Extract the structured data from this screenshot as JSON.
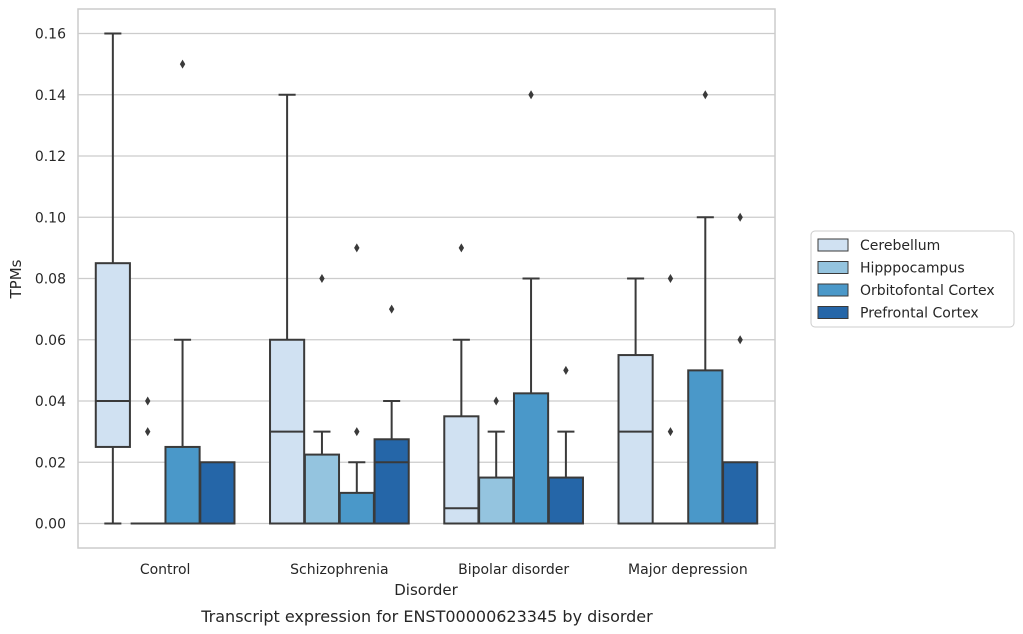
{
  "chart_data": {
    "type": "boxplot",
    "caption": "Transcript expression for ENST00000623345 by disorder",
    "xlabel": "Disorder",
    "ylabel": "TPMs",
    "ylim": [
      -0.008,
      0.168
    ],
    "yticks": [
      0.0,
      0.02,
      0.04,
      0.06,
      0.08,
      0.1,
      0.12,
      0.14,
      0.16
    ],
    "ytick_labels": [
      "0.00",
      "0.02",
      "0.04",
      "0.06",
      "0.08",
      "0.10",
      "0.12",
      "0.14",
      "0.16"
    ],
    "grid": "horizontal",
    "legend_position": "right",
    "categories": [
      "Control",
      "Schizophrenia",
      "Bipolar disorder",
      "Major depression"
    ],
    "series": [
      {
        "name": "Cerebellum",
        "color": "#d0e1f2",
        "boxes": [
          {
            "whisker_low": 0.0,
            "q1": 0.025,
            "median": 0.04,
            "q3": 0.085,
            "whisker_high": 0.16,
            "outliers": []
          },
          {
            "whisker_low": 0.0,
            "q1": 0.0,
            "median": 0.03,
            "q3": 0.06,
            "whisker_high": 0.14,
            "outliers": []
          },
          {
            "whisker_low": 0.0,
            "q1": 0.0,
            "median": 0.005,
            "q3": 0.035,
            "whisker_high": 0.06,
            "outliers": [
              0.09
            ]
          },
          {
            "whisker_low": 0.0,
            "q1": 0.0,
            "median": 0.03,
            "q3": 0.055,
            "whisker_high": 0.08,
            "outliers": []
          }
        ]
      },
      {
        "name": "Hipppocampus",
        "color": "#94c4df",
        "boxes": [
          {
            "whisker_low": 0.0,
            "q1": 0.0,
            "median": 0.0,
            "q3": 0.0,
            "whisker_high": 0.0,
            "outliers": [
              0.03,
              0.04
            ]
          },
          {
            "whisker_low": 0.0,
            "q1": 0.0,
            "median": 0.0,
            "q3": 0.0225,
            "whisker_high": 0.03,
            "outliers": [
              0.08
            ]
          },
          {
            "whisker_low": 0.0,
            "q1": 0.0,
            "median": 0.0,
            "q3": 0.015,
            "whisker_high": 0.03,
            "outliers": [
              0.04
            ]
          },
          {
            "whisker_low": 0.0,
            "q1": 0.0,
            "median": 0.0,
            "q3": 0.0,
            "whisker_high": 0.0,
            "outliers": [
              0.03,
              0.08
            ]
          }
        ]
      },
      {
        "name": "Orbitofontal Cortex",
        "color": "#4a98c9",
        "boxes": [
          {
            "whisker_low": 0.0,
            "q1": 0.0,
            "median": 0.0,
            "q3": 0.025,
            "whisker_high": 0.06,
            "outliers": [
              0.15
            ]
          },
          {
            "whisker_low": 0.0,
            "q1": 0.0,
            "median": 0.0,
            "q3": 0.01,
            "whisker_high": 0.02,
            "outliers": [
              0.03,
              0.09
            ]
          },
          {
            "whisker_low": 0.0,
            "q1": 0.0,
            "median": 0.0,
            "q3": 0.0425,
            "whisker_high": 0.08,
            "outliers": [
              0.14
            ]
          },
          {
            "whisker_low": 0.0,
            "q1": 0.0,
            "median": 0.0,
            "q3": 0.05,
            "whisker_high": 0.1,
            "outliers": [
              0.14
            ]
          }
        ]
      },
      {
        "name": "Prefrontal Cortex",
        "color": "#2566a8",
        "boxes": [
          {
            "whisker_low": 0.0,
            "q1": 0.0,
            "median": 0.0,
            "q3": 0.02,
            "whisker_high": 0.02,
            "outliers": []
          },
          {
            "whisker_low": 0.0,
            "q1": 0.0,
            "median": 0.02,
            "q3": 0.0275,
            "whisker_high": 0.04,
            "outliers": [
              0.07
            ]
          },
          {
            "whisker_low": 0.0,
            "q1": 0.0,
            "median": 0.0,
            "q3": 0.015,
            "whisker_high": 0.03,
            "outliers": [
              0.05
            ]
          },
          {
            "whisker_low": 0.0,
            "q1": 0.0,
            "median": 0.0,
            "q3": 0.02,
            "whisker_high": 0.02,
            "outliers": [
              0.06,
              0.1
            ]
          }
        ]
      }
    ]
  }
}
